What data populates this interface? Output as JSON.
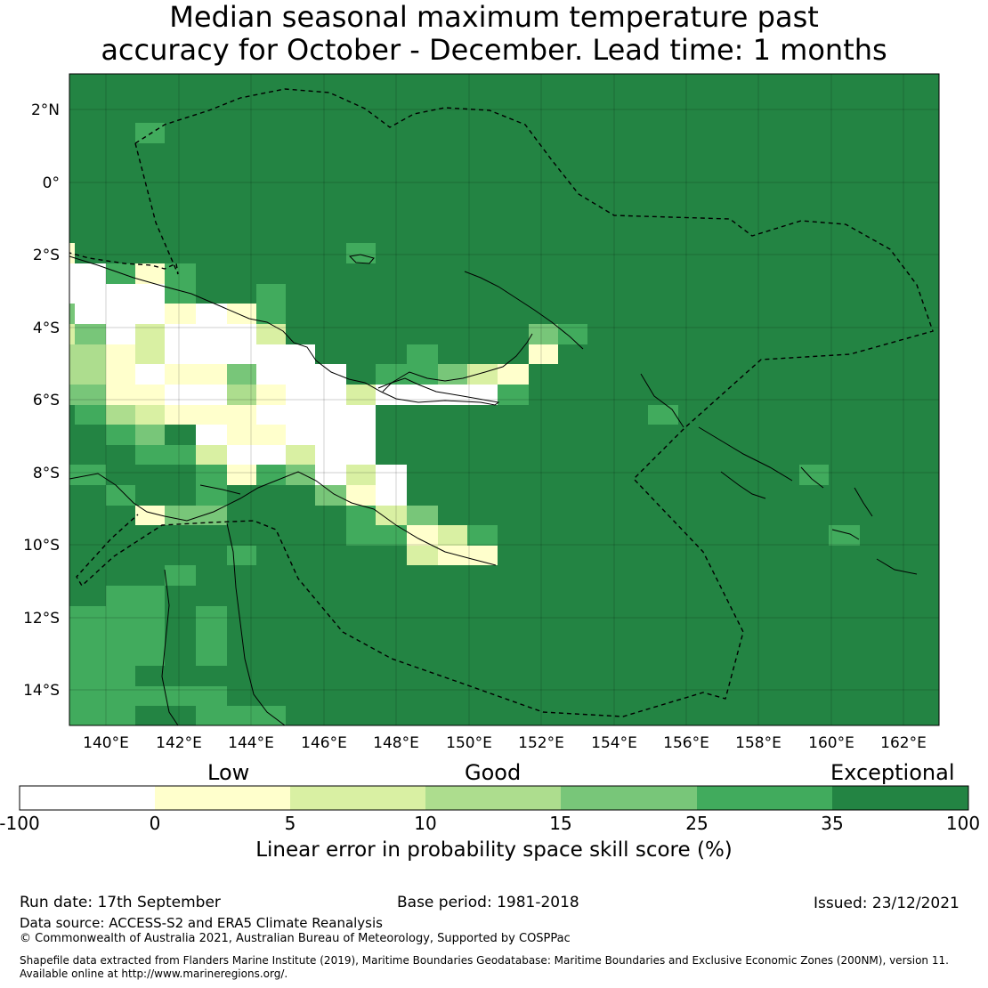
{
  "title_line1": "Median seasonal maximum temperature past",
  "title_line2": "accuracy for October - December. Lead time: 1 months",
  "map": {
    "lon_labels": [
      "140°E",
      "142°E",
      "144°E",
      "146°E",
      "148°E",
      "150°E",
      "152°E",
      "154°E",
      "156°E",
      "158°E",
      "160°E",
      "162°E"
    ],
    "lat_labels": [
      "2°N",
      "0°",
      "2°S",
      "4°S",
      "6°S",
      "8°S",
      "10°S",
      "12°S",
      "14°S"
    ]
  },
  "colorbar": {
    "categories": [
      "Low",
      "Good",
      "Exceptional"
    ],
    "ticks": [
      "-100",
      "0",
      "5",
      "10",
      "15",
      "25",
      "35",
      "100"
    ],
    "colors": [
      "#ffffff",
      "#ffffcc",
      "#d9f0a3",
      "#addd8e",
      "#78c679",
      "#41ab5d",
      "#238443"
    ],
    "label": "Linear error in probability space skill score (%)"
  },
  "footer": {
    "run_date": "Run date: 17th September",
    "base_period": "Base period: 1981-2018",
    "issued": "Issued: 23/12/2021",
    "data_source": "Data source: ACCESS-S2 and ERA5 Climate Reanalysis",
    "copyright": "© Commonwealth of Australia 2021, Australian Bureau of Meteorology, Supported by COSPPac",
    "shapefile_line1": "Shapefile data extracted from Flanders Marine Institute (2019), Maritime Boundaries Geodatabase: Maritime Boundaries and Exclusive Economic Zones (200NM), version 11.",
    "shapefile_line2": "Available online at http://www.marineregions.org/."
  }
}
